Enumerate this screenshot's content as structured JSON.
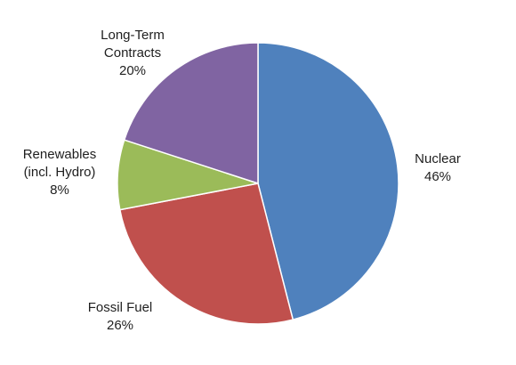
{
  "chart_data": {
    "type": "pie",
    "title": "",
    "slices": [
      {
        "label_lines": [
          "Nuclear"
        ],
        "value": 46,
        "display": "46%",
        "color": "#4f81bd"
      },
      {
        "label_lines": [
          "Fossil Fuel"
        ],
        "value": 26,
        "display": "26%",
        "color": "#c0504d"
      },
      {
        "label_lines": [
          "Renewables",
          "(incl. Hydro)"
        ],
        "value": 8,
        "display": "8%",
        "color": "#9bbb59"
      },
      {
        "label_lines": [
          "Long-Term",
          "Contracts"
        ],
        "value": 20,
        "display": "20%",
        "color": "#8064a2"
      }
    ],
    "start_angle_deg": 0,
    "direction": "clockwise",
    "legend": "none",
    "slice_border_color": "#ffffff"
  }
}
